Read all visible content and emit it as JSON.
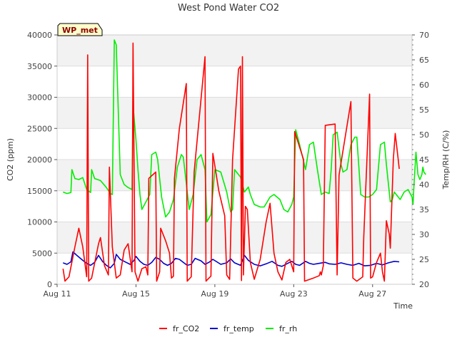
{
  "chart_data": {
    "type": "line",
    "title": "West Pond Water CO2",
    "xlabel": "Time",
    "ylabel_left": "CO2 (ppm)",
    "ylabel_right": "Temp/RH (C/%)",
    "badge": "WP_met",
    "x_ticks": [
      "Aug 11",
      "Aug 15",
      "Aug 19",
      "Aug 23",
      "Aug 27"
    ],
    "x_tick_days": [
      11,
      15,
      19,
      23,
      27
    ],
    "xlim": [
      11,
      29
    ],
    "y_left_ticks": [
      "0",
      "5000",
      "10000",
      "15000",
      "20000",
      "25000",
      "30000",
      "35000",
      "40000"
    ],
    "ylim_left": [
      0,
      40000
    ],
    "y_right_ticks": [
      "20",
      "25",
      "30",
      "35",
      "40",
      "45",
      "50",
      "55",
      "60",
      "65",
      "70"
    ],
    "ylim_right": [
      20,
      70
    ],
    "grid": true,
    "legend_position": "bottom",
    "series": [
      {
        "name": "fr_CO2",
        "axis": "left",
        "color": "#ff0000",
        "points": [
          [
            11.3,
            2500
          ],
          [
            11.4,
            500
          ],
          [
            11.6,
            1200
          ],
          [
            11.9,
            6000
          ],
          [
            12.1,
            9000
          ],
          [
            12.3,
            6000
          ],
          [
            12.5,
            1200
          ],
          [
            12.55,
            36800
          ],
          [
            12.6,
            500
          ],
          [
            12.75,
            1000
          ],
          [
            13.1,
            6500
          ],
          [
            13.2,
            7500
          ],
          [
            13.4,
            3000
          ],
          [
            13.6,
            1500
          ],
          [
            13.65,
            18800
          ],
          [
            13.8,
            6000
          ],
          [
            14.0,
            1000
          ],
          [
            14.2,
            1500
          ],
          [
            14.4,
            5500
          ],
          [
            14.6,
            6500
          ],
          [
            14.8,
            2000
          ],
          [
            14.85,
            38700
          ],
          [
            14.95,
            2000
          ],
          [
            15.1,
            500
          ],
          [
            15.3,
            2500
          ],
          [
            15.5,
            2800
          ],
          [
            15.6,
            1500
          ],
          [
            15.65,
            17000
          ],
          [
            16.0,
            18000
          ],
          [
            16.05,
            500
          ],
          [
            16.1,
            1000
          ],
          [
            16.2,
            2000
          ],
          [
            16.25,
            9000
          ],
          [
            16.5,
            7000
          ],
          [
            16.7,
            5000
          ],
          [
            16.8,
            1000
          ],
          [
            16.9,
            1300
          ],
          [
            16.95,
            17000
          ],
          [
            17.2,
            25000
          ],
          [
            17.55,
            32200
          ],
          [
            17.6,
            500
          ],
          [
            17.8,
            1200
          ],
          [
            17.95,
            18000
          ],
          [
            18.5,
            36500
          ],
          [
            18.55,
            500
          ],
          [
            18.7,
            1000
          ],
          [
            18.8,
            1300
          ],
          [
            18.9,
            21000
          ],
          [
            19.0,
            19000
          ],
          [
            19.2,
            15000
          ],
          [
            19.5,
            11000
          ],
          [
            19.6,
            1500
          ],
          [
            19.75,
            800
          ],
          [
            19.9,
            20000
          ],
          [
            20.2,
            34500
          ],
          [
            20.3,
            35000
          ],
          [
            20.35,
            600
          ],
          [
            20.4,
            36500
          ],
          [
            20.45,
            1500
          ],
          [
            20.55,
            12500
          ],
          [
            20.65,
            12000
          ],
          [
            20.8,
            3500
          ],
          [
            21.0,
            800
          ],
          [
            21.3,
            4000
          ],
          [
            21.6,
            10000
          ],
          [
            21.8,
            13000
          ],
          [
            22.0,
            5000
          ],
          [
            22.2,
            2000
          ],
          [
            22.4,
            700
          ],
          [
            22.6,
            3500
          ],
          [
            22.8,
            4000
          ],
          [
            23.0,
            2000
          ],
          [
            23.05,
            24500
          ],
          [
            23.5,
            20000
          ],
          [
            23.55,
            500
          ],
          [
            24.0,
            1000
          ],
          [
            24.3,
            1400
          ],
          [
            24.35,
            2000
          ],
          [
            24.4,
            1500
          ],
          [
            24.5,
            3000
          ],
          [
            24.6,
            25500
          ],
          [
            25.1,
            25700
          ],
          [
            25.2,
            1500
          ],
          [
            25.3,
            17500
          ],
          [
            25.9,
            29300
          ],
          [
            26.0,
            1000
          ],
          [
            26.2,
            500
          ],
          [
            26.5,
            1200
          ],
          [
            26.55,
            7500
          ],
          [
            26.85,
            30500
          ],
          [
            26.9,
            1000
          ],
          [
            27.0,
            1200
          ],
          [
            27.2,
            3500
          ],
          [
            27.4,
            5000
          ],
          [
            27.5,
            2000
          ],
          [
            27.6,
            500
          ],
          [
            27.7,
            10200
          ],
          [
            27.85,
            8000
          ],
          [
            27.9,
            5800
          ],
          [
            28.05,
            20000
          ],
          [
            28.15,
            24200
          ],
          [
            28.3,
            20000
          ],
          [
            28.35,
            18500
          ]
        ]
      },
      {
        "name": "fr_temp",
        "axis": "right",
        "color": "#0000cc",
        "points": [
          [
            11.3,
            24.3
          ],
          [
            11.5,
            24.0
          ],
          [
            11.7,
            24.5
          ],
          [
            11.8,
            26.5
          ],
          [
            12.0,
            25.8
          ],
          [
            12.3,
            24.8
          ],
          [
            12.5,
            24.2
          ],
          [
            12.7,
            23.8
          ],
          [
            12.9,
            24.4
          ],
          [
            13.1,
            25.8
          ],
          [
            13.3,
            24.6
          ],
          [
            13.5,
            23.8
          ],
          [
            13.7,
            23.3
          ],
          [
            13.9,
            24.2
          ],
          [
            14.0,
            26.0
          ],
          [
            14.2,
            25.0
          ],
          [
            14.5,
            24.4
          ],
          [
            14.7,
            24.0
          ],
          [
            14.9,
            24.8
          ],
          [
            15.0,
            25.6
          ],
          [
            15.2,
            24.6
          ],
          [
            15.4,
            24.0
          ],
          [
            15.6,
            23.8
          ],
          [
            15.8,
            24.4
          ],
          [
            16.0,
            25.4
          ],
          [
            16.2,
            25.0
          ],
          [
            16.4,
            24.2
          ],
          [
            16.6,
            23.8
          ],
          [
            16.8,
            24.2
          ],
          [
            17.0,
            25.2
          ],
          [
            17.2,
            25.0
          ],
          [
            17.4,
            24.4
          ],
          [
            17.6,
            23.8
          ],
          [
            17.8,
            24.0
          ],
          [
            18.0,
            25.2
          ],
          [
            18.3,
            24.7
          ],
          [
            18.5,
            24.0
          ],
          [
            18.7,
            24.4
          ],
          [
            18.9,
            25.0
          ],
          [
            19.1,
            24.5
          ],
          [
            19.3,
            24.0
          ],
          [
            19.6,
            24.3
          ],
          [
            19.8,
            25.1
          ],
          [
            20.0,
            24.3
          ],
          [
            20.3,
            23.8
          ],
          [
            20.5,
            25.8
          ],
          [
            20.7,
            24.8
          ],
          [
            21.0,
            24.0
          ],
          [
            21.3,
            23.7
          ],
          [
            21.6,
            24.1
          ],
          [
            21.9,
            24.6
          ],
          [
            22.2,
            23.8
          ],
          [
            22.4,
            23.6
          ],
          [
            22.7,
            24.2
          ],
          [
            22.9,
            24.6
          ],
          [
            23.1,
            24.0
          ],
          [
            23.3,
            23.8
          ],
          [
            23.6,
            24.6
          ],
          [
            23.8,
            24.2
          ],
          [
            24.0,
            24.0
          ],
          [
            24.3,
            24.2
          ],
          [
            24.6,
            24.4
          ],
          [
            24.8,
            24.1
          ],
          [
            25.1,
            24.0
          ],
          [
            25.4,
            24.3
          ],
          [
            25.7,
            24.0
          ],
          [
            26.0,
            23.8
          ],
          [
            26.3,
            24.2
          ],
          [
            26.6,
            23.7
          ],
          [
            26.9,
            23.8
          ],
          [
            27.2,
            24.2
          ],
          [
            27.5,
            23.9
          ],
          [
            27.8,
            24.3
          ],
          [
            28.1,
            24.6
          ],
          [
            28.35,
            24.5
          ]
        ]
      },
      {
        "name": "fr_rh",
        "axis": "right",
        "color": "#00ee00",
        "points": [
          [
            11.3,
            38.5
          ],
          [
            11.5,
            38.2
          ],
          [
            11.7,
            38.4
          ],
          [
            11.75,
            43.0
          ],
          [
            11.9,
            41.2
          ],
          [
            12.1,
            41.0
          ],
          [
            12.3,
            41.4
          ],
          [
            12.5,
            39.0
          ],
          [
            12.7,
            38.4
          ],
          [
            12.75,
            43.0
          ],
          [
            12.9,
            41.2
          ],
          [
            13.2,
            40.8
          ],
          [
            13.5,
            39.4
          ],
          [
            13.7,
            38.2
          ],
          [
            13.8,
            38.0
          ],
          [
            13.9,
            69.0
          ],
          [
            14.0,
            68.0
          ],
          [
            14.2,
            42.0
          ],
          [
            14.4,
            40.0
          ],
          [
            14.6,
            39.4
          ],
          [
            14.8,
            39.0
          ],
          [
            14.85,
            56.0
          ],
          [
            15.0,
            49.0
          ],
          [
            15.1,
            43.0
          ],
          [
            15.2,
            38.0
          ],
          [
            15.3,
            35.0
          ],
          [
            15.5,
            36.5
          ],
          [
            15.7,
            38.0
          ],
          [
            15.8,
            46.0
          ],
          [
            16.0,
            46.5
          ],
          [
            16.1,
            45.0
          ],
          [
            16.3,
            37.5
          ],
          [
            16.5,
            33.5
          ],
          [
            16.7,
            34.5
          ],
          [
            16.9,
            37.0
          ],
          [
            17.1,
            43.5
          ],
          [
            17.3,
            46.0
          ],
          [
            17.4,
            45.5
          ],
          [
            17.5,
            42.0
          ],
          [
            17.7,
            35.0
          ],
          [
            17.9,
            38.0
          ],
          [
            18.1,
            45.0
          ],
          [
            18.3,
            46.0
          ],
          [
            18.5,
            43.0
          ],
          [
            18.6,
            32.5
          ],
          [
            18.8,
            34.0
          ],
          [
            19.0,
            43.0
          ],
          [
            19.3,
            42.5
          ],
          [
            19.6,
            38.5
          ],
          [
            19.8,
            34.5
          ],
          [
            19.9,
            35.0
          ],
          [
            20.0,
            43.0
          ],
          [
            20.3,
            41.5
          ],
          [
            20.4,
            40.0
          ],
          [
            20.5,
            38.5
          ],
          [
            20.7,
            39.5
          ],
          [
            20.8,
            38.0
          ],
          [
            21.0,
            36.0
          ],
          [
            21.3,
            35.5
          ],
          [
            21.5,
            35.5
          ],
          [
            21.8,
            37.5
          ],
          [
            22.0,
            38.0
          ],
          [
            22.3,
            37.0
          ],
          [
            22.5,
            35.0
          ],
          [
            22.7,
            34.5
          ],
          [
            22.9,
            36.0
          ],
          [
            23.0,
            37.5
          ],
          [
            23.1,
            51.0
          ],
          [
            23.3,
            48.0
          ],
          [
            23.6,
            43.0
          ],
          [
            23.8,
            48.0
          ],
          [
            24.0,
            48.5
          ],
          [
            24.2,
            43.0
          ],
          [
            24.4,
            38.0
          ],
          [
            24.6,
            38.5
          ],
          [
            24.8,
            38.2
          ],
          [
            24.9,
            43.0
          ],
          [
            25.0,
            50.0
          ],
          [
            25.2,
            50.5
          ],
          [
            25.4,
            44.0
          ],
          [
            25.5,
            42.5
          ],
          [
            25.7,
            43.0
          ],
          [
            25.9,
            48.0
          ],
          [
            26.1,
            49.5
          ],
          [
            26.2,
            49.5
          ],
          [
            26.4,
            38.0
          ],
          [
            26.6,
            37.5
          ],
          [
            26.8,
            37.5
          ],
          [
            27.0,
            38.0
          ],
          [
            27.2,
            39.0
          ],
          [
            27.4,
            48.0
          ],
          [
            27.6,
            48.5
          ],
          [
            27.7,
            44.0
          ],
          [
            27.9,
            36.5
          ],
          [
            28.0,
            37.0
          ],
          [
            28.1,
            38.5
          ],
          [
            28.2,
            38.0
          ],
          [
            28.4,
            37.0
          ],
          [
            28.6,
            38.5
          ],
          [
            28.8,
            39.0
          ],
          [
            29.0,
            37.5
          ],
          [
            29.05,
            36.0
          ],
          [
            29.1,
            40.0
          ],
          [
            29.2,
            46.5
          ],
          [
            29.3,
            42.0
          ],
          [
            29.4,
            41.0
          ],
          [
            29.5,
            42.0
          ],
          [
            29.55,
            43.5
          ],
          [
            29.6,
            42.5
          ],
          [
            29.7,
            42.0
          ]
        ]
      }
    ]
  }
}
